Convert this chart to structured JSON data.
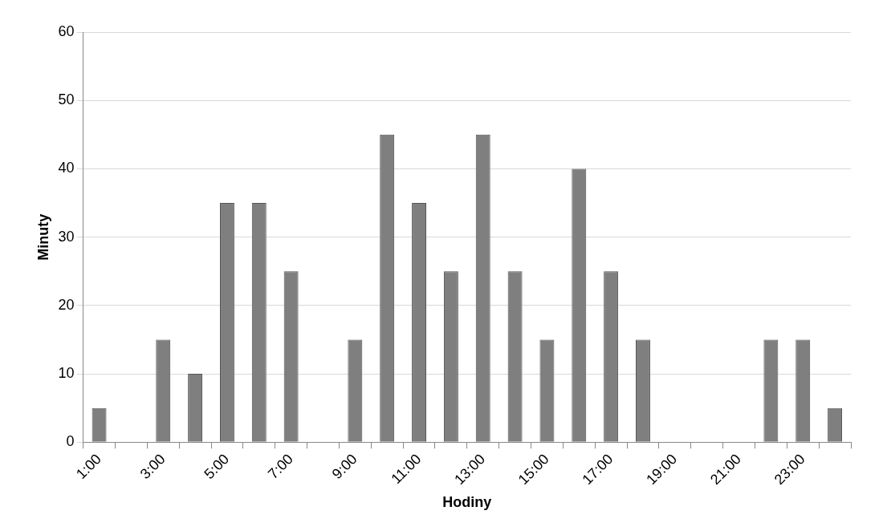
{
  "chart_data": {
    "type": "bar",
    "xlabel": "Hodiny",
    "ylabel": "Minuty",
    "categories": [
      "1:00",
      null,
      "3:00",
      null,
      "5:00",
      null,
      "7:00",
      null,
      "9:00",
      null,
      "11:00",
      null,
      "13:00",
      null,
      "15:00",
      null,
      "17:00",
      null,
      "19:00",
      null,
      "21:00",
      null,
      "23:00",
      null
    ],
    "values": [
      5,
      0,
      15,
      10,
      35,
      35,
      25,
      0,
      15,
      45,
      35,
      25,
      45,
      25,
      15,
      40,
      25,
      15,
      0,
      0,
      0,
      15,
      15,
      5
    ],
    "color": "#7f7f7f",
    "ylim": [
      0,
      60
    ],
    "yticks": [
      0,
      10,
      20,
      30,
      40,
      50,
      60
    ],
    "grid": "y",
    "legend": false
  }
}
